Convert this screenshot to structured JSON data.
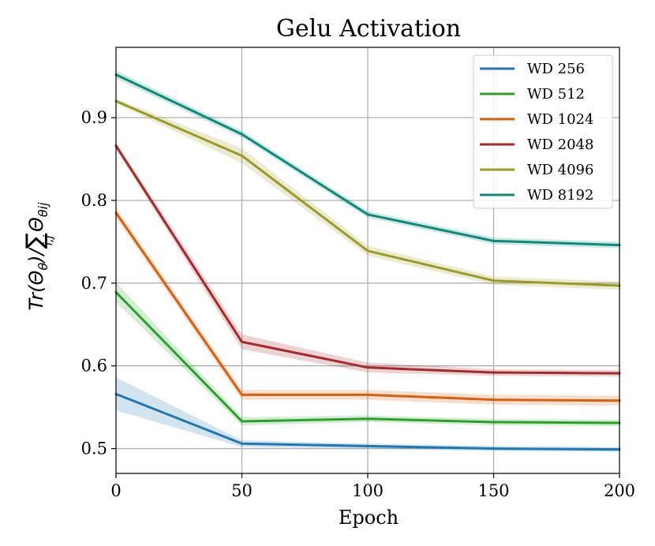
{
  "chart_data": {
    "type": "line",
    "title": "Gelu Activation",
    "xlabel": "Epoch",
    "ylabel": "Tr(Θθ)/∑i,j Θθij",
    "xlim": [
      0,
      200
    ],
    "ylim": [
      0.47,
      0.985
    ],
    "xticks": [
      0,
      50,
      100,
      150,
      200
    ],
    "yticks": [
      0.5,
      0.6,
      0.7,
      0.8,
      0.9
    ],
    "xtick_labels": [
      "0",
      "50",
      "100",
      "150",
      "200"
    ],
    "ytick_labels": [
      "0.5",
      "0.6",
      "0.7",
      "0.8",
      "0.9"
    ],
    "grid": true,
    "legend_position": "top-right",
    "x": [
      0,
      50,
      100,
      150,
      200
    ],
    "series": [
      {
        "name": "WD 256",
        "color": "#1f77b4",
        "values": [
          0.566,
          0.506,
          0.503,
          0.5,
          0.499
        ],
        "band": [
          0.02,
          0.004,
          0.003,
          0.003,
          0.003
        ]
      },
      {
        "name": "WD 512",
        "color": "#2ca02c",
        "values": [
          0.689,
          0.533,
          0.536,
          0.532,
          0.531
        ],
        "band": [
          0.012,
          0.005,
          0.004,
          0.004,
          0.004
        ]
      },
      {
        "name": "WD 1024",
        "color": "#d95f0e",
        "values": [
          0.785,
          0.565,
          0.565,
          0.559,
          0.558
        ],
        "band": [
          0.006,
          0.006,
          0.006,
          0.006,
          0.006
        ]
      },
      {
        "name": "WD 2048",
        "color": "#a52a2a",
        "values": [
          0.866,
          0.629,
          0.598,
          0.592,
          0.591
        ],
        "band": [
          0.004,
          0.009,
          0.006,
          0.004,
          0.004
        ]
      },
      {
        "name": "WD 4096",
        "color": "#9a9a24",
        "values": [
          0.92,
          0.854,
          0.739,
          0.703,
          0.697
        ],
        "band": [
          0.003,
          0.009,
          0.006,
          0.005,
          0.005
        ]
      },
      {
        "name": "WD 8192",
        "color": "#0c8a7a",
        "values": [
          0.952,
          0.88,
          0.783,
          0.751,
          0.746
        ],
        "band": [
          0.005,
          0.004,
          0.004,
          0.004,
          0.004
        ]
      }
    ]
  }
}
